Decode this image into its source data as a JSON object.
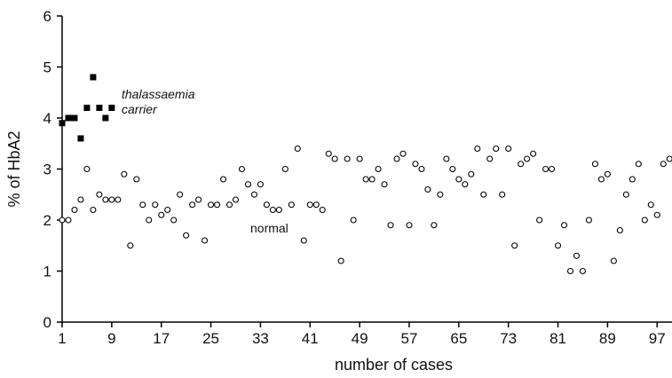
{
  "chart_data": {
    "type": "scatter",
    "xlabel": "number of cases",
    "ylabel": "% of HbA2",
    "xlim": [
      1,
      98
    ],
    "ylim": [
      0,
      6
    ],
    "xticks": [
      "1",
      "9",
      "17",
      "25",
      "33",
      "41",
      "49",
      "57",
      "65",
      "73",
      "81",
      "89",
      "97"
    ],
    "yticks": [
      "0",
      "1",
      "2",
      "3",
      "4",
      "5",
      "6"
    ],
    "grid": false,
    "annotations": {
      "thalassaemia_line1": "thalassaemia",
      "thalassaemia_line2": "carrier",
      "normal": "normal"
    },
    "series": [
      {
        "marker": "filled-square",
        "color": "#000000",
        "points": [
          [
            1,
            3.9
          ],
          [
            2,
            4.0
          ],
          [
            3,
            4.0
          ],
          [
            4,
            3.6
          ],
          [
            5,
            4.2
          ],
          [
            6,
            4.8
          ],
          [
            7,
            4.2
          ],
          [
            8,
            4.0
          ],
          [
            9,
            4.2
          ]
        ]
      },
      {
        "marker": "open-circle",
        "color": "#000000",
        "points": [
          [
            1,
            2.0
          ],
          [
            2,
            2.0
          ],
          [
            3,
            2.2
          ],
          [
            4,
            2.4
          ],
          [
            5,
            3.0
          ],
          [
            6,
            2.2
          ],
          [
            7,
            2.5
          ],
          [
            8,
            2.4
          ],
          [
            9,
            2.4
          ],
          [
            10,
            2.4
          ],
          [
            11,
            2.9
          ],
          [
            12,
            1.5
          ],
          [
            13,
            2.8
          ],
          [
            14,
            2.3
          ],
          [
            15,
            2.0
          ],
          [
            16,
            2.3
          ],
          [
            17,
            2.1
          ],
          [
            18,
            2.2
          ],
          [
            19,
            2.0
          ],
          [
            20,
            2.5
          ],
          [
            21,
            1.7
          ],
          [
            22,
            2.3
          ],
          [
            23,
            2.4
          ],
          [
            24,
            1.6
          ],
          [
            25,
            2.3
          ],
          [
            26,
            2.3
          ],
          [
            27,
            2.8
          ],
          [
            28,
            2.3
          ],
          [
            29,
            2.4
          ],
          [
            30,
            3.0
          ],
          [
            31,
            2.7
          ],
          [
            32,
            2.5
          ],
          [
            33,
            2.7
          ],
          [
            34,
            2.3
          ],
          [
            35,
            2.2
          ],
          [
            36,
            2.2
          ],
          [
            37,
            3.0
          ],
          [
            38,
            2.3
          ],
          [
            39,
            3.4
          ],
          [
            40,
            1.6
          ],
          [
            41,
            2.3
          ],
          [
            42,
            2.3
          ],
          [
            43,
            2.2
          ],
          [
            44,
            3.3
          ],
          [
            45,
            3.2
          ],
          [
            46,
            1.2
          ],
          [
            47,
            3.2
          ],
          [
            48,
            2.0
          ],
          [
            49,
            3.2
          ],
          [
            50,
            2.8
          ],
          [
            51,
            2.8
          ],
          [
            52,
            3.0
          ],
          [
            53,
            2.7
          ],
          [
            54,
            1.9
          ],
          [
            55,
            3.2
          ],
          [
            56,
            3.3
          ],
          [
            57,
            1.9
          ],
          [
            58,
            3.1
          ],
          [
            59,
            3.0
          ],
          [
            60,
            2.6
          ],
          [
            61,
            1.9
          ],
          [
            62,
            2.5
          ],
          [
            63,
            3.2
          ],
          [
            64,
            3.0
          ],
          [
            65,
            2.8
          ],
          [
            66,
            2.7
          ],
          [
            67,
            2.9
          ],
          [
            68,
            3.4
          ],
          [
            69,
            2.5
          ],
          [
            70,
            3.2
          ],
          [
            71,
            3.4
          ],
          [
            72,
            2.5
          ],
          [
            73,
            3.4
          ],
          [
            74,
            1.5
          ],
          [
            75,
            3.1
          ],
          [
            76,
            3.2
          ],
          [
            77,
            3.3
          ],
          [
            78,
            2.0
          ],
          [
            79,
            3.0
          ],
          [
            80,
            3.0
          ],
          [
            81,
            1.5
          ],
          [
            82,
            1.9
          ],
          [
            83,
            1.0
          ],
          [
            84,
            1.3
          ],
          [
            85,
            1.0
          ],
          [
            86,
            2.0
          ],
          [
            87,
            3.1
          ],
          [
            88,
            2.8
          ],
          [
            89,
            2.9
          ],
          [
            90,
            1.2
          ],
          [
            91,
            1.8
          ],
          [
            92,
            2.5
          ],
          [
            93,
            2.8
          ],
          [
            94,
            3.1
          ],
          [
            95,
            2.0
          ],
          [
            96,
            2.3
          ],
          [
            97,
            2.1
          ],
          [
            98,
            3.1
          ],
          [
            99,
            3.2
          ]
        ]
      }
    ]
  }
}
